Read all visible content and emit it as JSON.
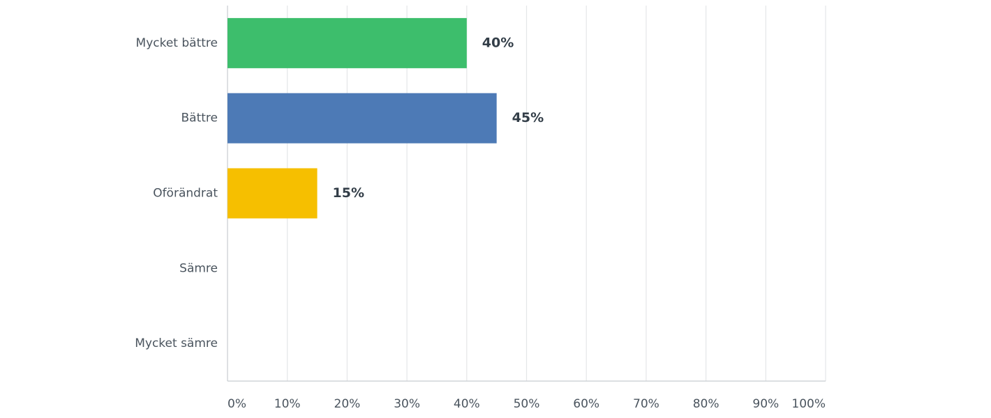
{
  "chart_data": {
    "type": "hbar",
    "categories": [
      "Mycket bättre",
      "Bättre",
      "Oförändrat",
      "Sämre",
      "Mycket sämre"
    ],
    "values": [
      40,
      45,
      15,
      null,
      null
    ],
    "value_labels": [
      "40%",
      "45%",
      "15%",
      null,
      null
    ],
    "colors": [
      "#3dbe6c",
      "#4d7ab6",
      "#f6bf00",
      null,
      null
    ],
    "xlim": [
      0,
      100
    ],
    "xticks": [
      {
        "value": 0,
        "label": "0%"
      },
      {
        "value": 10,
        "label": "10%"
      },
      {
        "value": 20,
        "label": "20%"
      },
      {
        "value": 30,
        "label": "30%"
      },
      {
        "value": 40,
        "label": "40%"
      },
      {
        "value": 50,
        "label": "50%"
      },
      {
        "value": 60,
        "label": "60%"
      },
      {
        "value": 70,
        "label": "70%"
      },
      {
        "value": 80,
        "label": "80%"
      },
      {
        "value": 90,
        "label": "90%"
      },
      {
        "value": 100,
        "label": "100%"
      }
    ],
    "grid": true
  }
}
